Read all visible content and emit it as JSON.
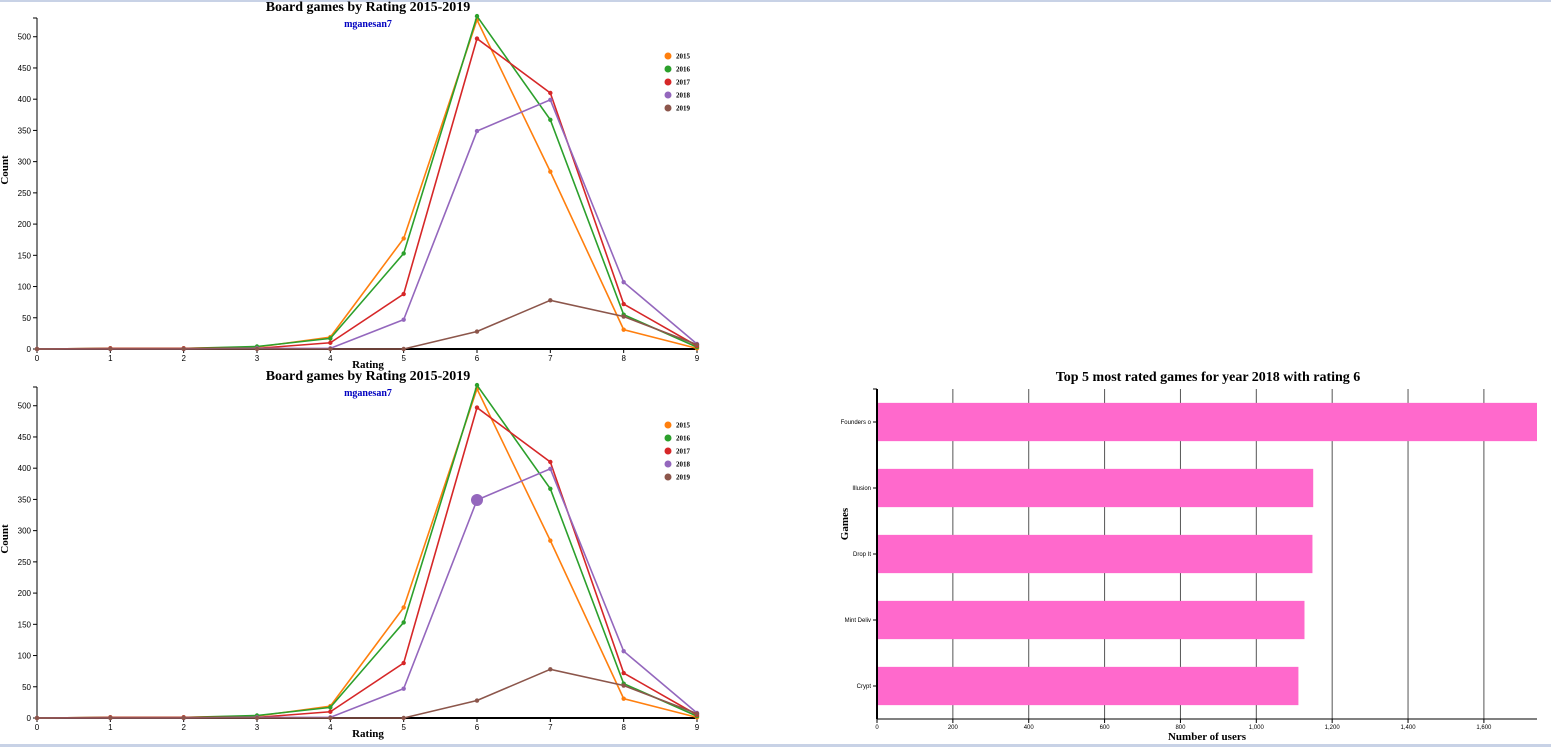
{
  "chart_data": [
    {
      "type": "line",
      "title": "Board games by Rating 2015-2019",
      "subtitle": "mganesan7",
      "xlabel": "Rating",
      "ylabel": "Count",
      "x": [
        0,
        1,
        2,
        3,
        4,
        5,
        6,
        7,
        8,
        9
      ],
      "xlim": [
        0,
        9
      ],
      "ylim": [
        0,
        530
      ],
      "yticks": [
        0,
        50,
        100,
        150,
        200,
        250,
        300,
        350,
        400,
        450,
        500
      ],
      "legend_position": "top-right",
      "series": [
        {
          "name": "2015",
          "color": "#ff7f0e",
          "values": [
            0,
            1,
            1,
            3,
            19,
            177,
            527,
            284,
            31,
            1
          ]
        },
        {
          "name": "2016",
          "color": "#2ca02c",
          "values": [
            0,
            1,
            1,
            4,
            17,
            153,
            533,
            367,
            55,
            3
          ]
        },
        {
          "name": "2017",
          "color": "#d62728",
          "values": [
            0,
            1,
            1,
            1,
            10,
            88,
            497,
            410,
            72,
            5
          ]
        },
        {
          "name": "2018",
          "color": "#9467bd",
          "values": [
            0,
            0,
            0,
            1,
            1,
            47,
            349,
            399,
            107,
            8
          ]
        },
        {
          "name": "2019",
          "color": "#8c564b",
          "values": [
            0,
            0,
            0,
            0,
            0,
            0,
            28,
            78,
            52,
            7
          ]
        }
      ]
    },
    {
      "type": "line",
      "title": "Board games by Rating 2015-2019",
      "subtitle": "mganesan7",
      "xlabel": "Rating",
      "ylabel": "Count",
      "x": [
        0,
        1,
        2,
        3,
        4,
        5,
        6,
        7,
        8,
        9
      ],
      "xlim": [
        0,
        9
      ],
      "ylim": [
        0,
        530
      ],
      "yticks": [
        0,
        50,
        100,
        150,
        200,
        250,
        300,
        350,
        400,
        450,
        500
      ],
      "legend_position": "top-right",
      "highlight": {
        "series": "2018",
        "x": 6
      },
      "series": [
        {
          "name": "2015",
          "color": "#ff7f0e",
          "values": [
            0,
            1,
            1,
            3,
            19,
            177,
            527,
            284,
            31,
            1
          ]
        },
        {
          "name": "2016",
          "color": "#2ca02c",
          "values": [
            0,
            1,
            1,
            4,
            17,
            153,
            533,
            367,
            55,
            3
          ]
        },
        {
          "name": "2017",
          "color": "#d62728",
          "values": [
            0,
            1,
            1,
            1,
            10,
            88,
            497,
            410,
            72,
            5
          ]
        },
        {
          "name": "2018",
          "color": "#9467bd",
          "values": [
            0,
            0,
            0,
            1,
            1,
            47,
            349,
            399,
            107,
            8
          ]
        },
        {
          "name": "2019",
          "color": "#8c564b",
          "values": [
            0,
            0,
            0,
            0,
            0,
            0,
            28,
            78,
            52,
            7
          ]
        }
      ]
    },
    {
      "type": "bar",
      "orientation": "horizontal",
      "title": "Top 5 most rated games for year 2018 with rating 6",
      "xlabel": "Number of users",
      "ylabel": "Games",
      "categories": [
        "Founders o",
        "Illusion",
        "Drop It",
        "Mint Delivery",
        "Crypt"
      ],
      "category_labels": [
        "Founders o",
        "Illusion",
        "Drop It",
        "Mint Deliv",
        "Crypt"
      ],
      "values": [
        1740,
        1150,
        1148,
        1127,
        1111
      ],
      "xlim": [
        0,
        1740
      ],
      "xticks": [
        0,
        200,
        400,
        600,
        800,
        1000,
        1200,
        1400,
        1600
      ],
      "xtick_labels": [
        "0",
        "200",
        "400",
        "600",
        "800",
        "1,000",
        "1,200",
        "1,400",
        "1,600"
      ],
      "grid": true,
      "color": "#ff69cc"
    }
  ]
}
